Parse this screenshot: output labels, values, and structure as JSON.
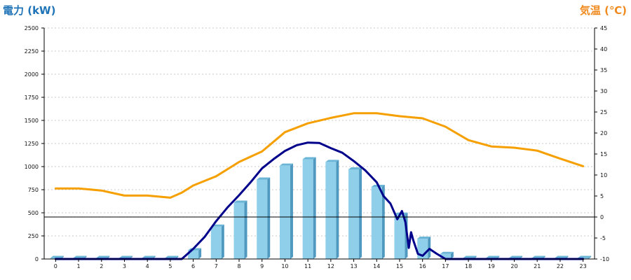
{
  "left_title": "電力 (kW)",
  "right_title": "気温 (℃)",
  "colors": {
    "left_title": "#1F73B7",
    "right_title": "#F08A1E",
    "bar_front": "#8FCFEA",
    "bar_top": "#6BB5D6",
    "bar_side": "#4F98BF",
    "power_line": "#00008B",
    "temp_line": "#F5A000",
    "grid": "#C8C8C8",
    "axis": "#000000"
  },
  "chart_data": {
    "type": "bar",
    "categories": [
      "0",
      "1",
      "2",
      "3",
      "4",
      "5",
      "6",
      "7",
      "8",
      "9",
      "10",
      "11",
      "12",
      "13",
      "14",
      "15",
      "16",
      "17",
      "18",
      "19",
      "20",
      "21",
      "22",
      "23"
    ],
    "series": [
      {
        "type": "bar",
        "axis": "left",
        "values": [
          0,
          0,
          0,
          0,
          0,
          0,
          95,
          350,
          610,
          860,
          1010,
          1080,
          1050,
          970,
          780,
          480,
          220,
          55,
          0,
          0,
          0,
          0,
          0,
          0
        ]
      },
      {
        "type": "line",
        "axis": "left",
        "x": [
          0,
          1,
          2,
          3,
          4,
          5,
          5.5,
          6,
          6.5,
          7,
          7.5,
          8,
          8.5,
          9,
          9.5,
          10,
          10.5,
          11,
          11.5,
          12,
          12.5,
          13,
          13.5,
          14,
          14.3,
          14.6,
          14.9,
          15.1,
          15.25,
          15.4,
          15.5,
          15.6,
          15.8,
          16,
          16.3,
          16.6,
          17,
          17.5,
          18,
          19,
          20,
          21,
          22,
          23
        ],
        "values": [
          0,
          0,
          0,
          0,
          0,
          0,
          0,
          110,
          240,
          410,
          560,
          690,
          830,
          980,
          1080,
          1170,
          1230,
          1260,
          1255,
          1200,
          1150,
          1060,
          960,
          830,
          680,
          600,
          430,
          520,
          400,
          120,
          290,
          200,
          55,
          35,
          110,
          60,
          0,
          0,
          0,
          0,
          0,
          0,
          0,
          0
        ]
      },
      {
        "type": "line",
        "axis": "right",
        "x": [
          0,
          1,
          2,
          3,
          4,
          5,
          5.5,
          6,
          7,
          8,
          9,
          10,
          11,
          12,
          13,
          14,
          15,
          16,
          17,
          18,
          19,
          20,
          21,
          22,
          23
        ],
        "values": [
          6.8,
          6.8,
          6.3,
          5.1,
          5.1,
          4.6,
          5.8,
          7.5,
          9.7,
          13.1,
          15.6,
          20.2,
          22.3,
          23.6,
          24.7,
          24.7,
          24.0,
          23.5,
          21.5,
          18.3,
          16.8,
          16.5,
          15.8,
          13.9,
          12.1
        ]
      }
    ],
    "ylim_left": [
      0,
      2500
    ],
    "ylim_right": [
      -10,
      45
    ],
    "yticks_left": [
      0,
      250,
      500,
      750,
      1000,
      1250,
      1500,
      1750,
      2000,
      2250,
      2500
    ],
    "yticks_right": [
      -10,
      -5,
      0,
      5,
      10,
      15,
      20,
      25,
      30,
      35,
      40,
      45
    ],
    "grid": true
  }
}
